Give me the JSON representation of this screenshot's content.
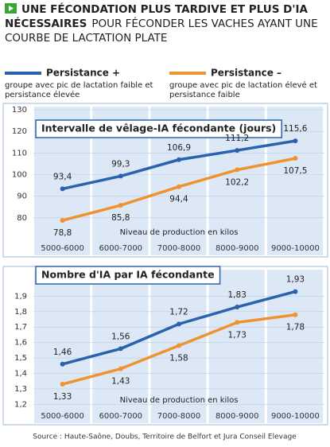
{
  "header": {
    "title_bold": "UNE FÉCONDATION PLUS TARDIVE ET PLUS D'IA NÉCESSAIRES",
    "title_rest": "POUR FÉCONDER LES VACHES AYANT UNE COURBE DE LACTATION PLATE"
  },
  "source": "Source : Haute-Saône, Doubs, Territoire de Belfort et Jura Conseil Elevage",
  "chart_data": [
    {
      "type": "line",
      "title": "Intervalle de vêlage-IA fécondante (jours)",
      "x_label": "Niveau de production en kilos",
      "categories": [
        "5000-6000",
        "6000-7000",
        "7000-8000",
        "8000-9000",
        "9000-10000"
      ],
      "series": [
        {
          "name": "Persistance +",
          "description": "groupe avec pic de lactation faible et persistance élevée",
          "color": "#2a62ad",
          "values": [
            93.4,
            99.3,
            106.9,
            111.2,
            115.6
          ],
          "value_labels": [
            "93,4",
            "99,3",
            "106,9",
            "111,2",
            "115,6"
          ]
        },
        {
          "name": "Persistance –",
          "description": "groupe avec pic de lactation élevé et persistance faible",
          "color": "#ef9230",
          "values": [
            78.8,
            85.8,
            94.4,
            102.2,
            107.5
          ],
          "value_labels": [
            "78,8",
            "85,8",
            "94,4",
            "102,2",
            "107,5"
          ]
        }
      ],
      "ylim": [
        70,
        130
      ],
      "yticks": [
        80,
        90,
        100,
        110,
        120,
        130
      ],
      "grid": true
    },
    {
      "type": "line",
      "title": "Nombre d'IA par IA fécondante",
      "x_label": "Niveau de production en kilos",
      "categories": [
        "5000-6000",
        "6000-7000",
        "7000-8000",
        "8000-9000",
        "9000-10000"
      ],
      "series": [
        {
          "color": "#2a62ad",
          "values": [
            1.46,
            1.56,
            1.72,
            1.83,
            1.93
          ],
          "value_labels": [
            "1,46",
            "1,56",
            "1,72",
            "1,83",
            "1,93"
          ]
        },
        {
          "color": "#ef9230",
          "values": [
            1.33,
            1.43,
            1.58,
            1.73,
            1.78
          ],
          "value_labels": [
            "1,33",
            "1,43",
            "1,58",
            "1,73",
            "1,78"
          ]
        }
      ],
      "ylim": [
        1.15,
        2.0
      ],
      "yticks": [
        {
          "value": 1.2,
          "label": "1,2"
        },
        {
          "value": 1.3,
          "label": "1,3"
        },
        {
          "value": 1.4,
          "label": "1,4"
        },
        {
          "value": 1.5,
          "label": "1,5"
        },
        {
          "value": 1.6,
          "label": "1,6"
        },
        {
          "value": 1.7,
          "label": "1,7"
        },
        {
          "value": 1.8,
          "label": "1,8"
        },
        {
          "value": 1.9,
          "label": "1,9"
        }
      ],
      "grid": true
    }
  ]
}
